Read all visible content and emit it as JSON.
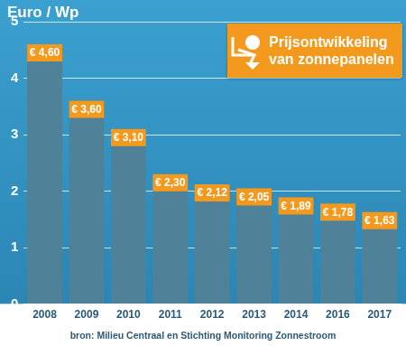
{
  "chart_data": {
    "type": "bar",
    "title": "Prijsontwikkeling van zonnepanelen",
    "y_label": "Euro / Wp",
    "source": "bron: Milieu Centraal en Stichting Monitoring Zonnestroom",
    "categories": [
      "2008",
      "2009",
      "2010",
      "2011",
      "2012",
      "2013",
      "2014",
      "2016",
      "2017"
    ],
    "values": [
      4.6,
      3.6,
      3.1,
      2.3,
      2.12,
      2.05,
      1.89,
      1.78,
      1.63
    ],
    "value_labels": [
      "€ 4,60",
      "€ 3,60",
      "€ 3,10",
      "€ 2,30",
      "€ 2,12",
      "€ 2,05",
      "€ 1,89",
      "€ 1,78",
      "€ 1,63"
    ],
    "color": "#4f8198",
    "ylim": [
      0,
      5
    ],
    "yticks": [
      0,
      1,
      2,
      3,
      4,
      5
    ],
    "grid": true,
    "data_labels": true
  }
}
